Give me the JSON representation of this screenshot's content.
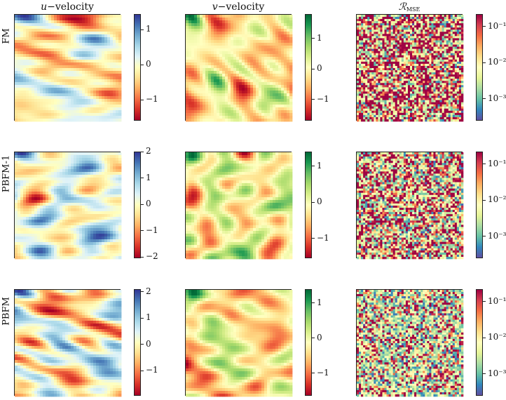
{
  "columns": [
    {
      "key": "u",
      "title_var": "u",
      "title_rest": "−velocity",
      "cmap": "RdYlBu",
      "type": "linear"
    },
    {
      "key": "v",
      "title_var": "v",
      "title_rest": "−velocity",
      "cmap": "RdYlGn",
      "type": "linear"
    },
    {
      "key": "r",
      "title_var": "ℛ",
      "title_sub": "MSE",
      "cmap": "Spectral_r",
      "type": "log"
    }
  ],
  "rows": [
    {
      "label": "FM"
    },
    {
      "label": "PBFM-1"
    },
    {
      "label": "PBFM"
    }
  ],
  "chart_data": {
    "type": "heatmap",
    "panels": [
      {
        "row": "FM",
        "column": "u−velocity",
        "vmin": -1.6,
        "vmax": 1.45,
        "ticks": [
          -1,
          0,
          1
        ],
        "tick_labels": [
          "−1",
          "0",
          "1"
        ]
      },
      {
        "row": "FM",
        "column": "v−velocity",
        "vmin": -1.7,
        "vmax": 1.8,
        "ticks": [
          -1,
          0,
          1
        ],
        "tick_labels": [
          "−1",
          "0",
          "1"
        ]
      },
      {
        "row": "FM",
        "column": "R_MSE",
        "scale": "log",
        "vmin": 0.00025,
        "vmax": 0.22,
        "ticks": [
          0.001,
          0.01,
          0.1
        ],
        "tick_labels": [
          "10⁻³",
          "10⁻²",
          "10⁻¹"
        ],
        "noise_bias": 0.55
      },
      {
        "row": "PBFM-1",
        "column": "u−velocity",
        "vmin": -2.05,
        "vmax": 2.0,
        "ticks": [
          -2,
          -1,
          0,
          1,
          2
        ],
        "tick_labels": [
          "−2",
          "−1",
          "0",
          "1",
          "2"
        ]
      },
      {
        "row": "PBFM-1",
        "column": "v−velocity",
        "vmin": -1.55,
        "vmax": 1.4,
        "ticks": [
          -1,
          0,
          1
        ],
        "tick_labels": [
          "−1",
          "0",
          "1"
        ]
      },
      {
        "row": "PBFM-1",
        "column": "R_MSE",
        "scale": "log",
        "vmin": 0.00025,
        "vmax": 0.22,
        "ticks": [
          0.001,
          0.01,
          0.1
        ],
        "tick_labels": [
          "10⁻³",
          "10⁻²",
          "10⁻¹"
        ],
        "noise_bias": 0.45
      },
      {
        "row": "PBFM",
        "column": "u−velocity",
        "vmin": -1.95,
        "vmax": 2.1,
        "ticks": [
          -1,
          0,
          1,
          2
        ],
        "tick_labels": [
          "−1",
          "0",
          "1",
          "2"
        ]
      },
      {
        "row": "PBFM",
        "column": "v−velocity",
        "vmin": -1.65,
        "vmax": 1.4,
        "ticks": [
          -1,
          0,
          1
        ],
        "tick_labels": [
          "−1",
          "0",
          "1"
        ]
      },
      {
        "row": "PBFM",
        "column": "R_MSE",
        "scale": "log",
        "vmin": 0.00025,
        "vmax": 0.22,
        "ticks": [
          0.001,
          0.01,
          0.1
        ],
        "tick_labels": [
          "10⁻³",
          "10⁻²",
          "10⁻¹"
        ],
        "noise_bias": 0.3
      }
    ]
  }
}
